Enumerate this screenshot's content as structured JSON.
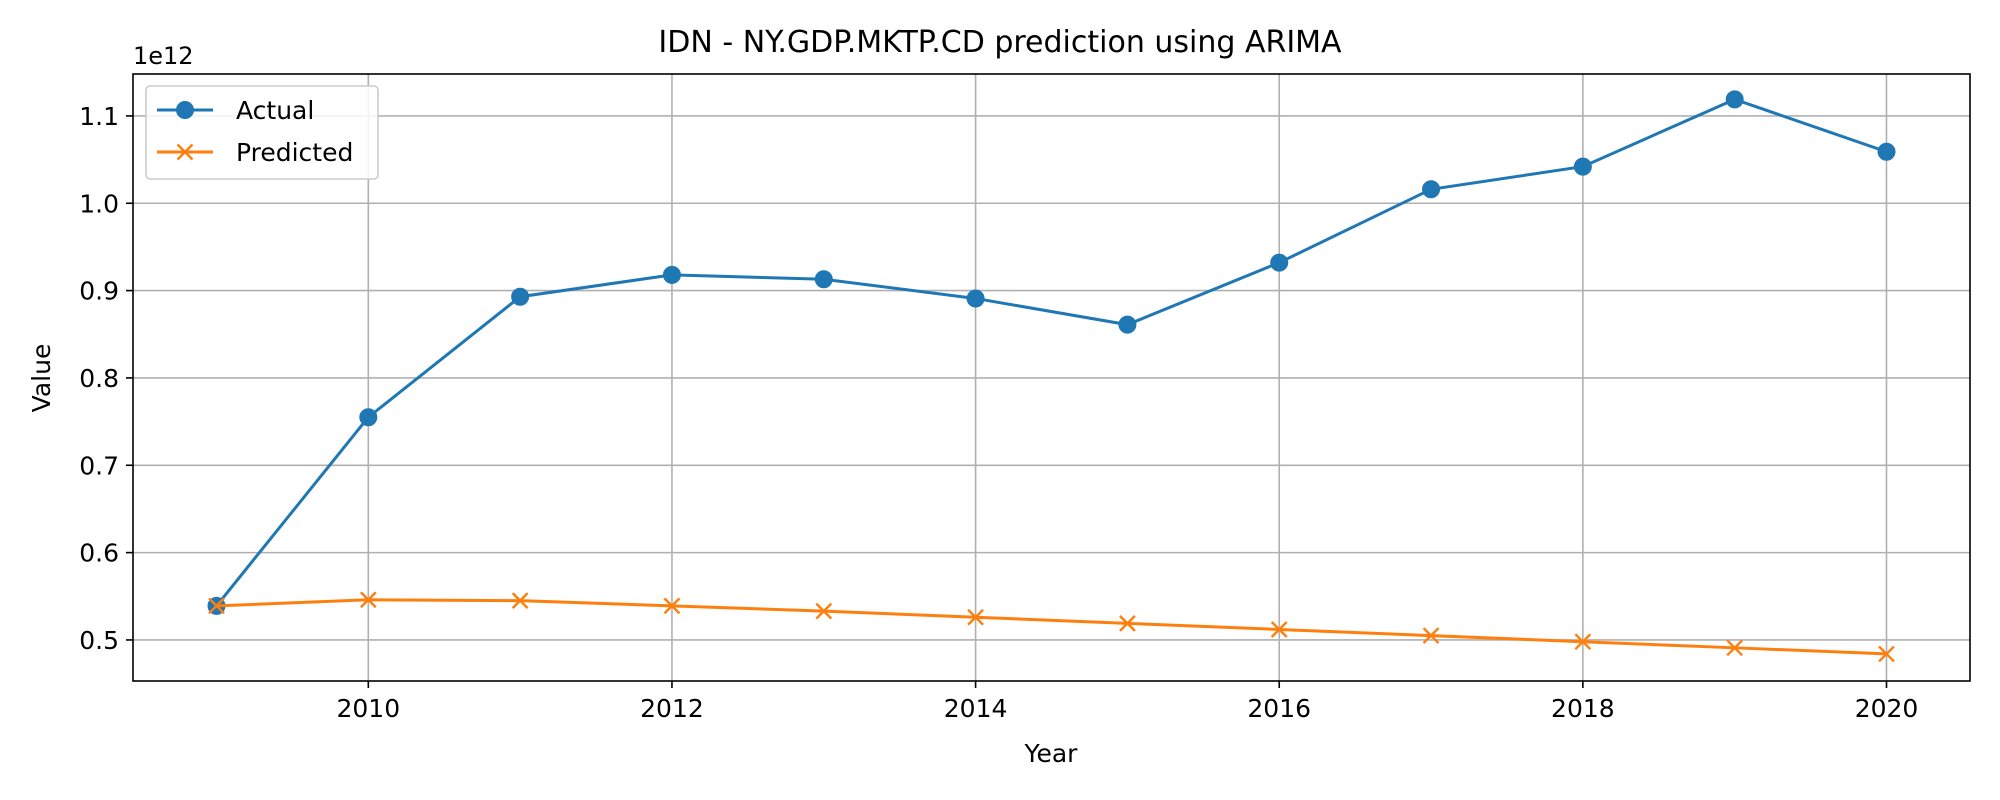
{
  "chart_data": {
    "type": "line",
    "title": "IDN - NY.GDP.MKTP.CD prediction using ARIMA",
    "xlabel": "Year",
    "ylabel": "Value",
    "y_scale_label": "1e12",
    "x": [
      2009,
      2010,
      2011,
      2012,
      2013,
      2014,
      2015,
      2016,
      2017,
      2018,
      2019,
      2020
    ],
    "xlim": [
      2008.45,
      2020.55
    ],
    "ylim": [
      0.453,
      1.148
    ],
    "x_ticks": [
      2010,
      2012,
      2014,
      2016,
      2018,
      2020
    ],
    "y_ticks": [
      0.5,
      0.6,
      0.7,
      0.8,
      0.9,
      1.0,
      1.1
    ],
    "y_tick_labels": [
      "0.5",
      "0.6",
      "0.7",
      "0.8",
      "0.9",
      "1.0",
      "1.1"
    ],
    "grid": true,
    "legend_position": "top-left",
    "series": [
      {
        "name": "Actual",
        "color": "#1f77b4",
        "marker": "circle",
        "values": [
          0.539,
          0.755,
          0.893,
          0.918,
          0.913,
          0.891,
          0.861,
          0.932,
          1.016,
          1.042,
          1.119,
          1.059
        ]
      },
      {
        "name": "Predicted",
        "color": "#ff7f0e",
        "marker": "x",
        "values": [
          0.539,
          0.546,
          0.545,
          0.539,
          0.533,
          0.526,
          0.519,
          0.512,
          0.505,
          0.498,
          0.491,
          0.484
        ]
      }
    ]
  }
}
